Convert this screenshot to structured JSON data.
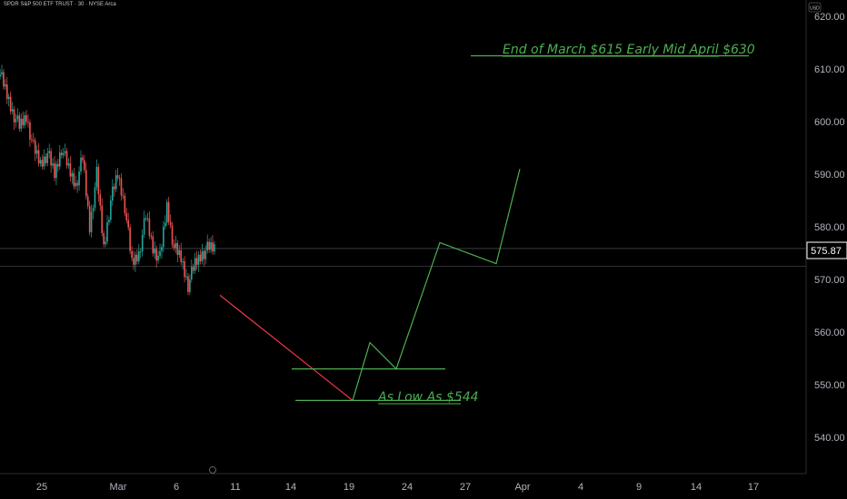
{
  "header": {
    "symbol_title": "SPDR S&P 500 ETF TRUST · 30 · NYSE Arca",
    "currency": "USD"
  },
  "chart_data": {
    "type": "line",
    "title": "SPDR S&P 500 ETF TRUST · 30 · NYSE Arca",
    "x_tick_labels": [
      "25",
      "Mar",
      "6",
      "11",
      "14",
      "19",
      "24",
      "27",
      "Apr",
      "4",
      "9",
      "14",
      "17"
    ],
    "y_tick_labels": [
      "620.00",
      "610.00",
      "600.00",
      "590.00",
      "580.00",
      "570.00",
      "560.00",
      "550.00",
      "540.00"
    ],
    "ylim": [
      534,
      623
    ],
    "current_price": 575.87,
    "price_history": [
      {
        "session": 1,
        "value": 610
      },
      {
        "session": 2,
        "value": 606
      },
      {
        "session": 3,
        "value": 602
      },
      {
        "session": 4,
        "value": 599
      },
      {
        "session": 5,
        "value": 601
      },
      {
        "session": 6,
        "value": 595
      },
      {
        "session": 7,
        "value": 592
      },
      {
        "session": 8,
        "value": 594
      },
      {
        "session": 9,
        "value": 590
      },
      {
        "session": 10,
        "value": 595
      },
      {
        "session": 11,
        "value": 591
      },
      {
        "session": 12,
        "value": 588
      },
      {
        "session": 13,
        "value": 593
      },
      {
        "session": 14,
        "value": 580
      },
      {
        "session": 15,
        "value": 590
      },
      {
        "session": 16,
        "value": 576
      },
      {
        "session": 17,
        "value": 585
      },
      {
        "session": 18,
        "value": 590
      },
      {
        "session": 19,
        "value": 584
      },
      {
        "session": 20,
        "value": 573
      },
      {
        "session": 21,
        "value": 575
      },
      {
        "session": 22,
        "value": 582
      },
      {
        "session": 23,
        "value": 576
      },
      {
        "session": 24,
        "value": 574
      },
      {
        "session": 25,
        "value": 584
      },
      {
        "session": 26,
        "value": 576
      },
      {
        "session": 27,
        "value": 574
      },
      {
        "session": 28,
        "value": 569
      },
      {
        "session": 29,
        "value": 573
      },
      {
        "session": 30,
        "value": 575
      },
      {
        "session": 31,
        "value": 576
      }
    ],
    "horizontal_levels": [
      575.87,
      572.5
    ],
    "projection_down": {
      "color": "#f23645",
      "from": {
        "date": "Mar 10",
        "value": 567
      },
      "to": {
        "date": "Mar 20",
        "value": 547
      }
    },
    "projection_up": {
      "color": "#4caf50",
      "points": [
        {
          "date": "Mar 20",
          "value": 547
        },
        {
          "date": "Mar 21",
          "value": 558
        },
        {
          "date": "Mar 23",
          "value": 553
        },
        {
          "date": "Mar 26",
          "value": 577
        },
        {
          "date": "Mar 31",
          "value": 573
        },
        {
          "date": "Apr 1",
          "value": 591
        }
      ]
    },
    "support_lines": [
      {
        "label": "As Low As $544",
        "value": 547
      },
      {
        "value": 553
      },
      {
        "label": "End of March $615 Early Mid April $630",
        "value": 612.5
      }
    ],
    "colors": {
      "up": "#26a69a",
      "down": "#ef5350",
      "projection": "#4caf50",
      "down_projection": "#f23645"
    }
  }
}
